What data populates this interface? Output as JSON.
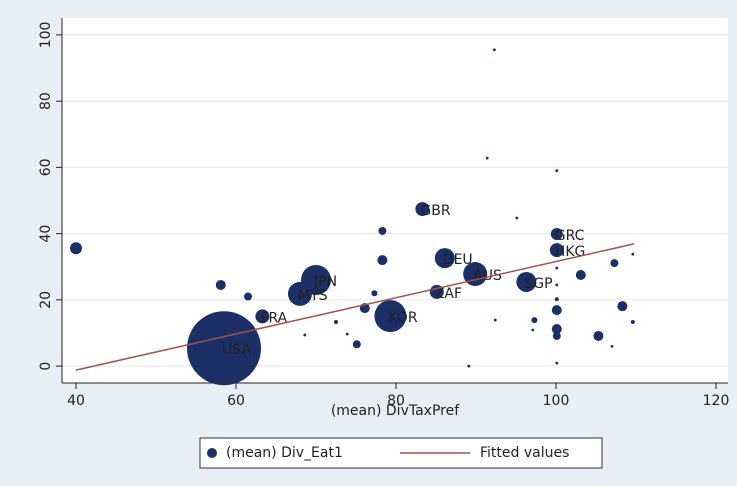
{
  "chart_data": {
    "type": "scatter",
    "xlabel": "(mean) DivTaxPref",
    "xlim": [
      38.25,
      121.5
    ],
    "ylim": [
      -5.1,
      105.1
    ],
    "xticks": [
      40,
      60,
      80,
      100,
      120
    ],
    "yticks": [
      0,
      20,
      40,
      60,
      80,
      100
    ],
    "grid": true,
    "legend": "bottom",
    "series": [
      {
        "name": "(mean) Div_Eat1",
        "type": "scatter",
        "color": "#1c2f66",
        "x": [
          40,
          58.5,
          58.1,
          61.5,
          63.3,
          68.6,
          68,
          70,
          72.5,
          73.9,
          75.1,
          76.1,
          77.3,
          78.3,
          78.3,
          79.3,
          83.3,
          86.1,
          85.1,
          89.9,
          91.4,
          92.3,
          92.4,
          89.1,
          95.1,
          96.3,
          97.3,
          97.1,
          100.1,
          100.1,
          100.1,
          100.1,
          100.1,
          100.1,
          100.1,
          100.1,
          100.1,
          100.1,
          103.1,
          105.3,
          107.3,
          107,
          108.3,
          109.6,
          109.6
        ],
        "values": [
          35.6,
          5.4,
          24.5,
          21,
          15,
          9.4,
          21.8,
          26,
          13.3,
          9.7,
          6.6,
          17.5,
          22,
          40.8,
          32,
          15.1,
          47.4,
          32.6,
          22.4,
          27.8,
          62.8,
          95.5,
          13.9,
          0,
          44.7,
          25.4,
          13.9,
          10.9,
          59,
          39.9,
          35,
          29.6,
          24.5,
          20.2,
          16.9,
          11.2,
          9.1,
          0.9,
          27.5,
          9.1,
          31.1,
          6,
          18.1,
          13.3,
          33.8
        ],
        "sizes": [
          36,
          1369,
          25,
          16,
          49,
          2,
          144,
          225,
          4,
          2,
          16,
          25,
          9,
          16,
          25,
          256,
          49,
          100,
          49,
          144,
          2,
          2,
          2,
          2,
          2,
          100,
          9,
          2,
          2,
          36,
          49,
          2,
          2,
          4,
          25,
          25,
          16,
          2,
          25,
          25,
          16,
          2,
          25,
          4,
          2
        ],
        "labels": [
          null,
          "USA",
          null,
          null,
          "FRA",
          null,
          "MYS",
          "JPN",
          null,
          null,
          null,
          null,
          null,
          null,
          null,
          "KOR",
          "GBR",
          "DEU",
          "ZAF",
          "AUS",
          null,
          null,
          null,
          null,
          null,
          "SGP",
          null,
          null,
          null,
          "GRC",
          "HKG",
          null,
          null,
          null,
          null,
          null,
          null,
          null,
          null,
          null,
          null,
          null,
          null,
          null,
          null
        ]
      },
      {
        "name": "Fitted values",
        "type": "line",
        "color": "#a5524c",
        "x": [
          40,
          109.75
        ],
        "values": [
          -1.2,
          36.9
        ]
      }
    ]
  }
}
